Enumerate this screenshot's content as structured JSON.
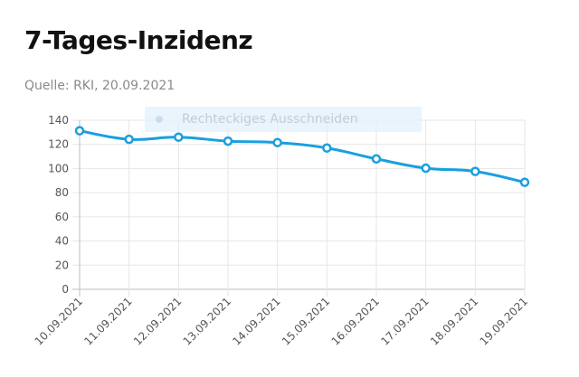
{
  "title": "7-Tages-Inzidenz",
  "subtitle": "Quelle: RKI, 20.09.2021",
  "overlay": {
    "label": "Rechteckiges Ausschneiden"
  },
  "chart_data": {
    "type": "line",
    "title": "7-Tages-Inzidenz",
    "subtitle": "Quelle: RKI, 20.09.2021",
    "categories": [
      "10.09.2021",
      "11.09.2021",
      "12.09.2021",
      "13.09.2021",
      "14.09.2021",
      "15.09.2021",
      "16.09.2021",
      "17.09.2021",
      "18.09.2021",
      "19.09.2021"
    ],
    "series": [
      {
        "values": [
          131.3,
          124.2,
          126.0,
          122.7,
          121.5,
          117.0,
          108.0,
          100.3,
          97.6,
          88.6
        ]
      }
    ],
    "xlabel": "",
    "ylabel": "",
    "ylim": [
      0,
      140
    ],
    "yticks": [
      0,
      20,
      40,
      60,
      80,
      100,
      120,
      140
    ],
    "grid": true,
    "legend": "none",
    "line_color": "#1a9fe0"
  }
}
